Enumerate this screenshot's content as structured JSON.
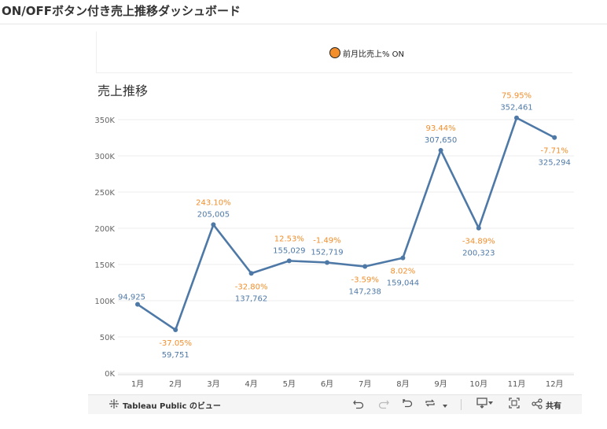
{
  "page": {
    "title": "ON/OFFボタン付き売上推移ダッシュボード"
  },
  "toggle": {
    "label": "前月比売上% ON",
    "icon": "circle-toggle-icon",
    "color": "#f28e2b"
  },
  "chart": {
    "title": "売上推移"
  },
  "chart_data": {
    "type": "line",
    "title": "売上推移",
    "xlabel": "",
    "ylabel": "",
    "categories": [
      "1月",
      "2月",
      "3月",
      "4月",
      "5月",
      "6月",
      "7月",
      "8月",
      "9月",
      "10月",
      "11月",
      "12月"
    ],
    "series": [
      {
        "values": [
          94925,
          59751,
          205005,
          137762,
          155029,
          152719,
          147238,
          159044,
          307650,
          200323,
          352461,
          325294
        ],
        "value_labels": [
          "94,925",
          "59,751",
          "205,005",
          "137,762",
          "155,029",
          "152,719",
          "147,238",
          "159,044",
          "307,650",
          "200,323",
          "352,461",
          "325,294"
        ],
        "color": "#4e79a7"
      }
    ],
    "pct_change_labels": [
      "",
      "-37.05%",
      "243.10%",
      "-32.80%",
      "12.53%",
      "-1.49%",
      "-3.59%",
      "8.02%",
      "93.44%",
      "-34.89%",
      "75.95%",
      "-7.71%"
    ],
    "pct_color": "#f28e2b",
    "yticks": [
      0,
      50000,
      100000,
      150000,
      200000,
      250000,
      300000,
      350000
    ],
    "ytick_labels": [
      "0K",
      "50K",
      "100K",
      "150K",
      "200K",
      "250K",
      "300K",
      "350K"
    ],
    "ylim": [
      0,
      360000
    ],
    "grid": true,
    "legend": "none"
  },
  "toolbar": {
    "brand_label": "Tableau Public のビュー",
    "share_label": "共有",
    "icons": [
      "tableau-logo-icon",
      "undo-icon",
      "redo-icon",
      "revert-icon",
      "refresh-icon",
      "dropdown-icon",
      "download-icon",
      "fullscreen-icon",
      "share-icon"
    ]
  }
}
